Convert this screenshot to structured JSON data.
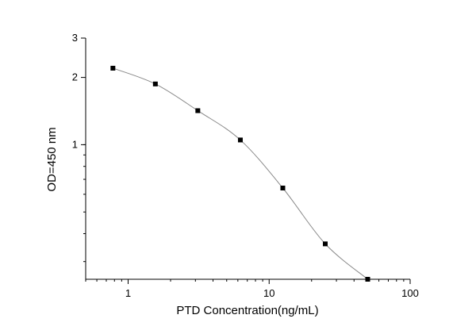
{
  "chart_data": {
    "type": "line",
    "title": "",
    "xlabel": "PTD  Concentration(ng/mL)",
    "ylabel": "OD=450 nm",
    "xscale": "log",
    "yscale": "log",
    "xlim": [
      0.5,
      100
    ],
    "ylim": [
      0.25,
      3
    ],
    "xticks": [
      1,
      10,
      100
    ],
    "xtick_labels": [
      "1",
      "10",
      "100"
    ],
    "yticks": [
      1,
      2,
      3
    ],
    "ytick_labels": [
      "1",
      "2",
      "3"
    ],
    "grid": false,
    "legend": "none",
    "series": [
      {
        "name": "PTD",
        "marker": "square",
        "color": "#000000",
        "line_color": "#888888",
        "x": [
          0.78,
          1.56,
          3.12,
          6.25,
          12.5,
          25,
          50
        ],
        "y": [
          2.2,
          1.87,
          1.42,
          1.05,
          0.64,
          0.36,
          0.25
        ]
      }
    ]
  }
}
